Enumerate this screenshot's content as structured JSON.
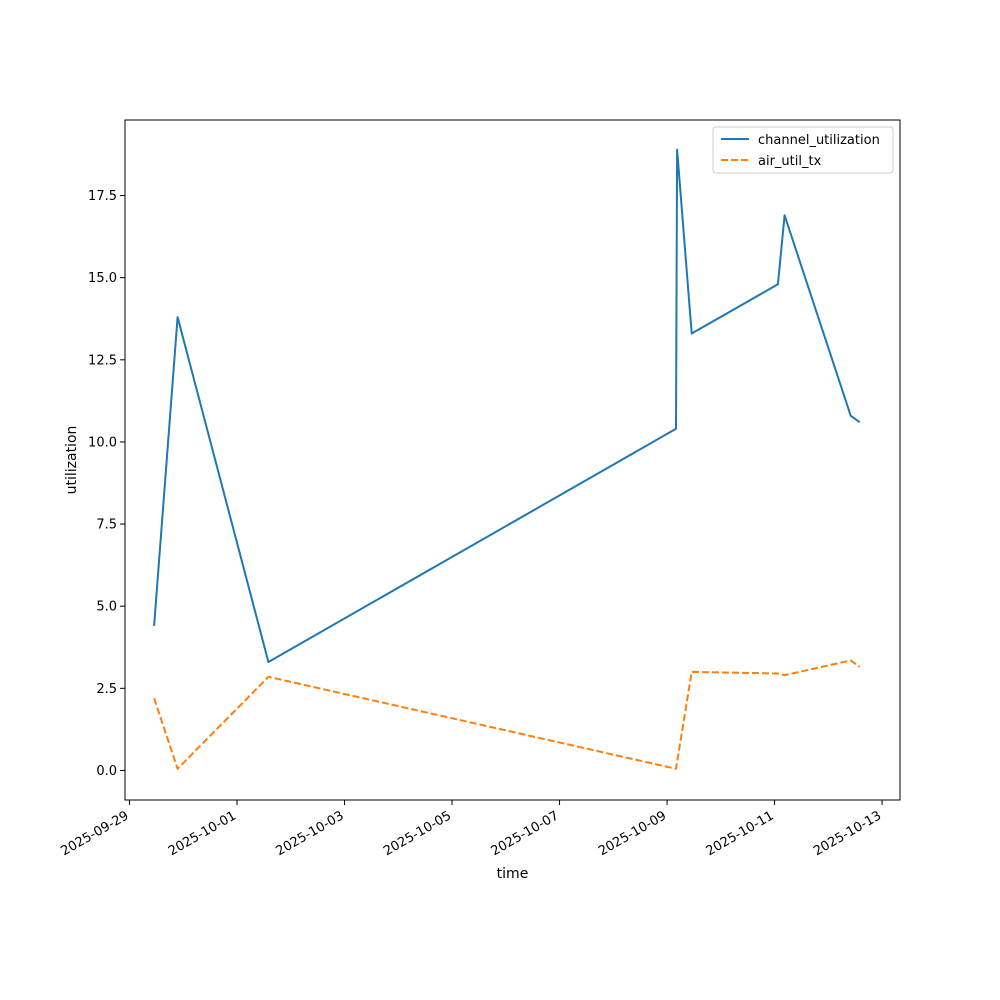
{
  "chart_data": {
    "type": "line",
    "xlabel": "time",
    "ylabel": "utilization",
    "x_axis_type": "date",
    "xlim": [
      "2025-09-28T22:00",
      "2025-10-13T08:00"
    ],
    "ylim": [
      -0.9,
      19.8
    ],
    "x_ticks": [
      "2025-09-29",
      "2025-10-01",
      "2025-10-03",
      "2025-10-05",
      "2025-10-07",
      "2025-10-09",
      "2025-10-11",
      "2025-10-13"
    ],
    "y_ticks": [
      "0.0",
      "2.5",
      "5.0",
      "7.5",
      "10.0",
      "12.5",
      "15.0",
      "17.5"
    ],
    "y_tick_values": [
      0,
      2.5,
      5,
      7.5,
      10,
      12.5,
      15,
      17.5
    ],
    "grid": false,
    "legend_position": "top-right",
    "series": [
      {
        "name": "channel_utilization",
        "color": "#1f77b4",
        "line_style": "solid",
        "points": [
          {
            "x": "2025-09-29T11:00",
            "y": 4.4
          },
          {
            "x": "2025-09-29T21:30",
            "y": 13.8
          },
          {
            "x": "2025-10-01T14:00",
            "y": 3.3
          },
          {
            "x": "2025-10-09T04:00",
            "y": 10.4
          },
          {
            "x": "2025-10-09T04:30",
            "y": 18.9
          },
          {
            "x": "2025-10-09T11:00",
            "y": 13.3
          },
          {
            "x": "2025-10-11T01:30",
            "y": 14.8
          },
          {
            "x": "2025-10-11T04:30",
            "y": 16.9
          },
          {
            "x": "2025-10-12T10:00",
            "y": 10.8
          },
          {
            "x": "2025-10-12T14:00",
            "y": 10.6
          }
        ]
      },
      {
        "name": "air_util_tx",
        "color": "#ff7f0e",
        "line_style": "dashed",
        "points": [
          {
            "x": "2025-09-29T11:00",
            "y": 2.2
          },
          {
            "x": "2025-09-29T21:30",
            "y": 0.05
          },
          {
            "x": "2025-10-01T14:00",
            "y": 2.85
          },
          {
            "x": "2025-10-09T04:00",
            "y": 0.05
          },
          {
            "x": "2025-10-09T11:00",
            "y": 3.0
          },
          {
            "x": "2025-10-11T01:30",
            "y": 2.95
          },
          {
            "x": "2025-10-11T04:30",
            "y": 2.9
          },
          {
            "x": "2025-10-12T10:00",
            "y": 3.35
          },
          {
            "x": "2025-10-12T14:00",
            "y": 3.15
          }
        ]
      }
    ]
  }
}
